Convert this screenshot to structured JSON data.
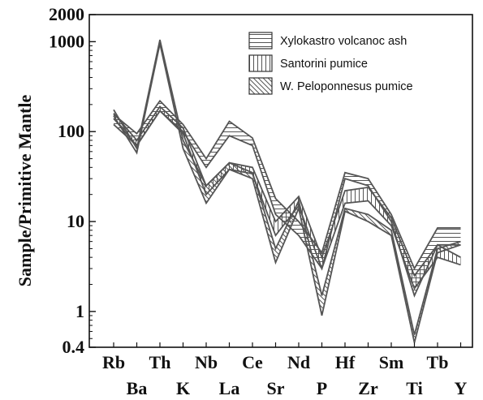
{
  "chart_data": {
    "type": "line",
    "ylabel": "Sample/Primitive Mantle",
    "xlabel": "",
    "yscale": "log",
    "ylim": [
      0.4,
      2000
    ],
    "y_ticks": [
      {
        "value": 2000,
        "label": "2000"
      },
      {
        "value": 1000,
        "label": "1000"
      },
      {
        "value": 100,
        "label": "100"
      },
      {
        "value": 10,
        "label": "10"
      },
      {
        "value": 1,
        "label": "1"
      },
      {
        "value": 0.4,
        "label": "0.4"
      }
    ],
    "categories": [
      "Rb",
      "Ba",
      "Th",
      "K",
      "Nb",
      "La",
      "Ce",
      "Sr",
      "Nd",
      "P",
      "Hf",
      "Zr",
      "Sm",
      "Ti",
      "Tb",
      "Y"
    ],
    "legend_position": "top-right",
    "series": [
      {
        "name": "Xylokastro volcanoc ash",
        "pattern": "horizontal",
        "color": "#555555",
        "upper": [
          155,
          95,
          220,
          120,
          50,
          130,
          85,
          18,
          10,
          4.5,
          35,
          30,
          12,
          3,
          8.5,
          8.5
        ],
        "lower": [
          120,
          70,
          170,
          100,
          40,
          90,
          70,
          12,
          7,
          3,
          30,
          25,
          10,
          1.5,
          5.5,
          5.5
        ]
      },
      {
        "name": "Santorini pumice",
        "pattern": "vertical",
        "color": "#555555",
        "upper": [
          160,
          80,
          190,
          110,
          25,
          45,
          40,
          10,
          19,
          4,
          22,
          24,
          11,
          2.5,
          5.5,
          4
        ],
        "lower": [
          140,
          70,
          170,
          95,
          20,
          38,
          34,
          7,
          15,
          3,
          16,
          17,
          9,
          1.8,
          4,
          3.3
        ]
      },
      {
        "name": "W. Peloponnesus pumice",
        "pattern": "diagonal",
        "color": "#555555",
        "upper": [
          175,
          65,
          1050,
          80,
          25,
          45,
          35,
          5,
          17,
          1.5,
          14,
          12,
          8,
          0.55,
          5,
          6
        ],
        "lower": [
          150,
          58,
          950,
          65,
          16,
          38,
          30,
          3.5,
          14,
          0.9,
          13,
          10,
          7,
          0.45,
          4.5,
          5.5
        ]
      }
    ]
  }
}
